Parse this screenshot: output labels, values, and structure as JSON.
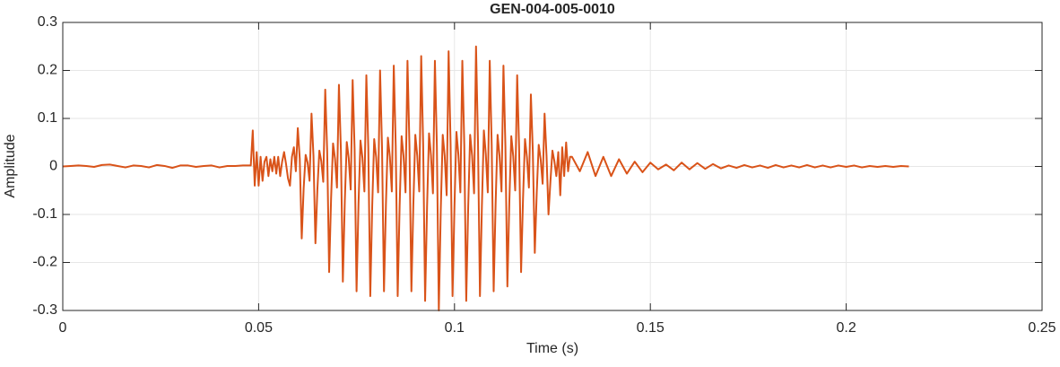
{
  "chart_data": {
    "type": "line",
    "title": "GEN-004-005-0010",
    "x_label": "Time (s)",
    "y_label": "Amplitude",
    "color": "#D95319",
    "grid": true,
    "xlim": [
      0,
      0.25
    ],
    "xticks": [
      0,
      0.05,
      0.1,
      0.15,
      0.2,
      0.25
    ],
    "ylim": [
      -0.3,
      0.3
    ],
    "yticks": [
      -0.3,
      -0.2,
      -0.1,
      0,
      0.1,
      0.2,
      0.3
    ],
    "x": [
      0,
      0.002,
      0.004,
      0.006,
      0.008,
      0.01,
      0.012,
      0.014,
      0.016,
      0.018,
      0.02,
      0.022,
      0.024,
      0.026,
      0.028,
      0.03,
      0.032,
      0.034,
      0.036,
      0.038,
      0.04,
      0.042,
      0.044,
      0.046,
      0.048,
      0.0485,
      0.049,
      0.0495,
      0.05,
      0.0505,
      0.051,
      0.0515,
      0.052,
      0.0525,
      0.053,
      0.0535,
      0.054,
      0.0545,
      0.055,
      0.0555,
      0.056,
      0.0565,
      0.057,
      0.0575,
      0.058,
      0.0585,
      0.059,
      0.0595,
      0.06,
      0.0605,
      0.061,
      0.0615,
      0.062,
      0.0625,
      0.063,
      0.0635,
      0.064,
      0.0645,
      0.065,
      0.0655,
      0.066,
      0.0665,
      0.067,
      0.0675,
      0.068,
      0.0685,
      0.069,
      0.0695,
      0.07,
      0.0705,
      0.071,
      0.0715,
      0.072,
      0.0725,
      0.073,
      0.0735,
      0.074,
      0.0745,
      0.075,
      0.0755,
      0.076,
      0.0765,
      0.077,
      0.0775,
      0.078,
      0.0785,
      0.079,
      0.0795,
      0.08,
      0.0805,
      0.081,
      0.0815,
      0.082,
      0.0825,
      0.083,
      0.0835,
      0.084,
      0.0845,
      0.085,
      0.0855,
      0.086,
      0.0865,
      0.087,
      0.0875,
      0.088,
      0.0885,
      0.089,
      0.0895,
      0.09,
      0.0905,
      0.091,
      0.0915,
      0.092,
      0.0925,
      0.093,
      0.0935,
      0.094,
      0.0945,
      0.095,
      0.0955,
      0.096,
      0.0965,
      0.097,
      0.0975,
      0.098,
      0.0985,
      0.099,
      0.0995,
      0.1,
      0.1005,
      0.101,
      0.1015,
      0.102,
      0.1025,
      0.103,
      0.1035,
      0.104,
      0.1045,
      0.105,
      0.1055,
      0.106,
      0.1065,
      0.107,
      0.1075,
      0.108,
      0.1085,
      0.109,
      0.1095,
      0.11,
      0.1105,
      0.111,
      0.1115,
      0.112,
      0.1125,
      0.113,
      0.1135,
      0.114,
      0.1145,
      0.115,
      0.1155,
      0.116,
      0.1165,
      0.117,
      0.1175,
      0.118,
      0.1185,
      0.119,
      0.1195,
      0.12,
      0.1205,
      0.121,
      0.1215,
      0.122,
      0.1225,
      0.123,
      0.1235,
      0.124,
      0.1245,
      0.125,
      0.1255,
      0.126,
      0.1265,
      0.127,
      0.1275,
      0.128,
      0.1285,
      0.129,
      0.1295,
      0.13,
      0.132,
      0.134,
      0.136,
      0.138,
      0.14,
      0.142,
      0.144,
      0.146,
      0.148,
      0.15,
      0.152,
      0.154,
      0.156,
      0.158,
      0.16,
      0.162,
      0.164,
      0.166,
      0.168,
      0.17,
      0.172,
      0.174,
      0.176,
      0.178,
      0.18,
      0.182,
      0.184,
      0.186,
      0.188,
      0.19,
      0.192,
      0.194,
      0.196,
      0.198,
      0.2,
      0.202,
      0.204,
      0.206,
      0.208,
      0.21,
      0.212,
      0.214,
      0.216
    ],
    "values": [
      0,
      0.001,
      0.002,
      0.001,
      -0.001,
      0.003,
      0.004,
      0.001,
      -0.002,
      0.002,
      0.001,
      -0.002,
      0.003,
      0.001,
      -0.003,
      0.002,
      0.002,
      -0.001,
      0.001,
      0.002,
      -0.002,
      0.001,
      0.001,
      0.002,
      0.002,
      0.075,
      -0.04,
      0.03,
      -0.04,
      0.02,
      -0.03,
      0.01,
      0.02,
      -0.02,
      0.015,
      -0.01,
      0.02,
      -0.015,
      0.02,
      -0.02,
      0.01,
      0.03,
      0.005,
      -0.025,
      -0.04,
      0.02,
      0.04,
      -0.01,
      0.08,
      0.016,
      -0.15,
      -0.045,
      0.024,
      0.008,
      -0.03,
      0.11,
      0.022,
      -0.16,
      -0.048,
      0.033,
      0.011,
      -0.032,
      0.16,
      0.032,
      -0.22,
      -0.066,
      0.048,
      0.016,
      -0.044,
      0.17,
      0.034,
      -0.24,
      -0.072,
      0.051,
      0.017,
      -0.048,
      0.18,
      0.036,
      -0.26,
      -0.078,
      0.054,
      0.018,
      -0.052,
      0.19,
      0.038,
      -0.27,
      -0.081,
      0.057,
      0.019,
      -0.054,
      0.2,
      0.04,
      -0.26,
      -0.078,
      0.06,
      0.02,
      -0.052,
      0.21,
      0.042,
      -0.27,
      -0.081,
      0.063,
      0.021,
      -0.054,
      0.22,
      0.044,
      -0.26,
      -0.078,
      0.066,
      0.022,
      -0.052,
      0.23,
      0.046,
      -0.28,
      -0.084,
      0.069,
      0.023,
      -0.056,
      0.22,
      0.044,
      -0.3,
      -0.09,
      0.066,
      0.022,
      -0.06,
      0.24,
      0.048,
      -0.27,
      -0.081,
      0.072,
      0.024,
      -0.054,
      0.22,
      0.044,
      -0.28,
      -0.084,
      0.066,
      0.022,
      -0.056,
      0.25,
      0.05,
      -0.27,
      -0.081,
      0.075,
      0.025,
      -0.054,
      0.22,
      0.044,
      -0.26,
      -0.078,
      0.066,
      0.022,
      -0.052,
      0.21,
      0.042,
      -0.25,
      -0.075,
      0.063,
      0.021,
      -0.05,
      0.19,
      0.038,
      -0.22,
      -0.066,
      0.057,
      0.019,
      -0.044,
      0.15,
      0.03,
      -0.18,
      -0.054,
      0.045,
      0.015,
      -0.036,
      0.11,
      0.022,
      -0.1,
      -0.03,
      0.033,
      0.011,
      -0.02,
      0.03,
      -0.06,
      0.04,
      -0.02,
      0.05,
      -0.01,
      0.02,
      0.02,
      -0.01,
      0.03,
      -0.02,
      0.02,
      -0.02,
      0.015,
      -0.015,
      0.01,
      -0.012,
      0.008,
      -0.006,
      0.004,
      -0.008,
      0.008,
      -0.006,
      0.007,
      -0.005,
      0.005,
      -0.004,
      0.002,
      -0.003,
      0.003,
      -0.002,
      0.002,
      -0.003,
      0.003,
      -0.002,
      0.002,
      -0.002,
      0.003,
      -0.002,
      0.002,
      -0.002,
      0.002,
      -0.001,
      0.002,
      -0.002,
      0.001,
      -0.001,
      0.001,
      -0.001,
      0.001,
      0
    ]
  }
}
